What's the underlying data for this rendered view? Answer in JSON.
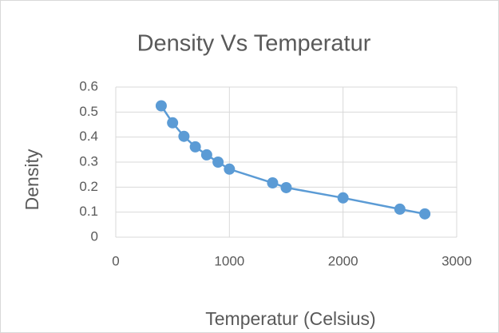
{
  "chart_data": {
    "type": "scatter-line",
    "title": "Density  Vs Temperatur",
    "x_label": "Temperatur (Celsius)",
    "y_label": "Density",
    "x": [
      400,
      500,
      600,
      700,
      800,
      900,
      1000,
      1380,
      1500,
      2000,
      2500,
      2720
    ],
    "values": [
      0.525,
      0.457,
      0.403,
      0.361,
      0.329,
      0.3,
      0.272,
      0.217,
      0.198,
      0.157,
      0.112,
      0.093
    ],
    "color": "#5b9bd5",
    "xlim": [
      0,
      3000
    ],
    "xticks": [
      0,
      1000,
      2000,
      3000
    ],
    "ylim": [
      0,
      0.6
    ],
    "yticks": [
      0,
      0.1,
      0.2,
      0.3,
      0.4,
      0.5,
      0.6
    ],
    "grid": true
  }
}
